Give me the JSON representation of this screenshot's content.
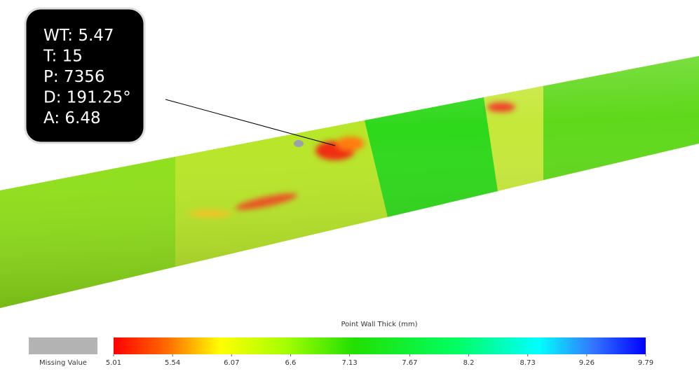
{
  "tooltip": {
    "lines": [
      "WT: 5.47",
      "T: 15",
      "P: 7356",
      "D: 191.25°",
      "A: 6.48"
    ]
  },
  "legend": {
    "title": "Point Wall Thick (mm)",
    "missing_label": "Missing Value",
    "range": [
      5.01,
      9.79
    ],
    "ticks": [
      5.01,
      5.54,
      6.07,
      6.6,
      7.13,
      7.67,
      8.2,
      8.73,
      9.26,
      9.79
    ]
  }
}
